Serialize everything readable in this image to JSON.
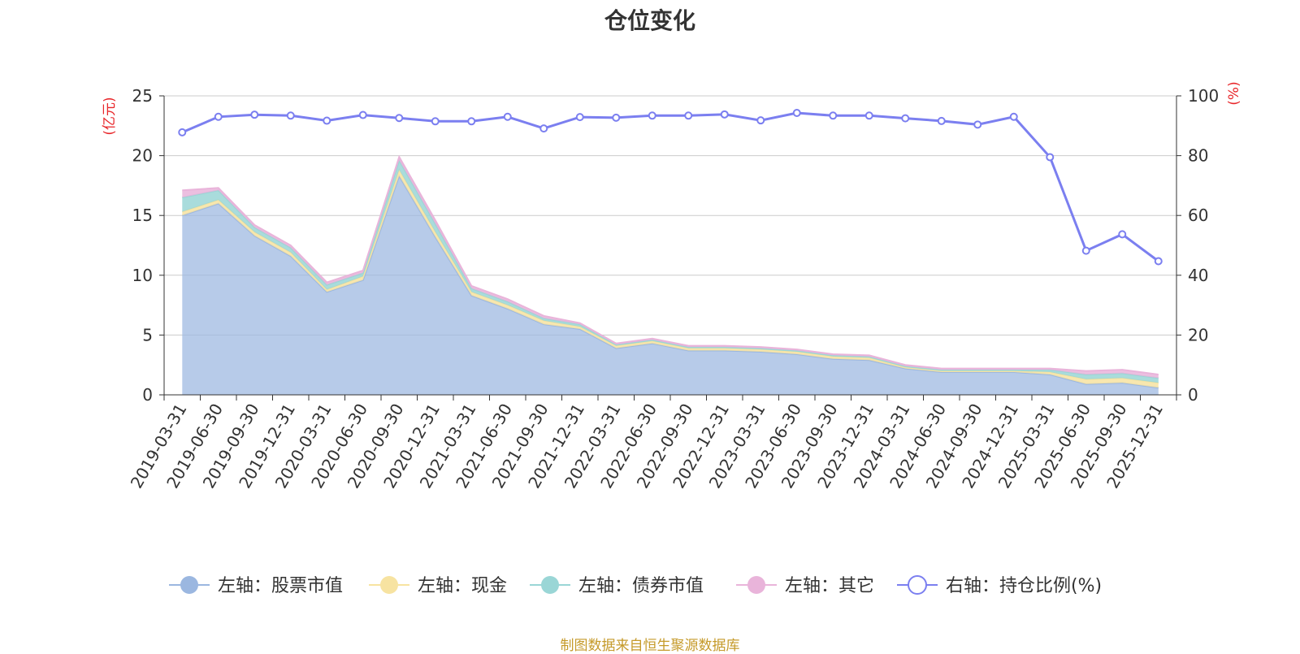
{
  "chart_data": {
    "type": "area",
    "title": "仓位变化",
    "left_axis_unit": "(亿元)",
    "right_axis_unit": "(%)",
    "x": [
      "2019-03-31",
      "2019-06-30",
      "2019-09-30",
      "2019-12-31",
      "2020-03-31",
      "2020-06-30",
      "2020-09-30",
      "2020-12-31",
      "2021-03-31",
      "2021-06-30",
      "2021-09-30",
      "2021-12-31",
      "2022-03-31",
      "2022-06-30",
      "2022-09-30",
      "2022-12-31",
      "2023-03-31",
      "2023-06-30",
      "2023-09-30",
      "2023-12-31",
      "2024-03-31",
      "2024-06-30",
      "2024-09-30",
      "2024-12-31",
      "2025-03-31",
      "2025-06-30",
      "2025-09-30",
      "2025-12-31"
    ],
    "ylim_left": [
      0,
      25
    ],
    "yticks_left": [
      0,
      5,
      10,
      15,
      20,
      25
    ],
    "ylim_right": [
      0,
      100
    ],
    "yticks_right": [
      0,
      20,
      40,
      60,
      80,
      100
    ],
    "grid": true,
    "legend_position": "bottom",
    "series": [
      {
        "name": "左轴：股票市值",
        "axis": "left",
        "kind": "stacked-area",
        "color": "#9bb7e0",
        "values": [
          15.0,
          16.0,
          13.3,
          11.6,
          8.6,
          9.6,
          18.3,
          13.2,
          8.3,
          7.2,
          5.9,
          5.5,
          3.9,
          4.3,
          3.7,
          3.7,
          3.6,
          3.4,
          3.0,
          2.9,
          2.2,
          1.9,
          1.9,
          1.9,
          1.7,
          0.9,
          1.0,
          0.6
        ]
      },
      {
        "name": "左轴：现金",
        "axis": "left",
        "kind": "stacked-area",
        "color": "#f7e3a1",
        "values": [
          0.3,
          0.3,
          0.3,
          0.3,
          0.2,
          0.3,
          0.5,
          0.4,
          0.3,
          0.3,
          0.3,
          0.2,
          0.2,
          0.2,
          0.2,
          0.2,
          0.2,
          0.2,
          0.2,
          0.2,
          0.1,
          0.1,
          0.1,
          0.1,
          0.2,
          0.4,
          0.4,
          0.4
        ]
      },
      {
        "name": "左轴：债券市值",
        "axis": "left",
        "kind": "stacked-area",
        "color": "#9ad6d6",
        "values": [
          1.2,
          0.8,
          0.4,
          0.4,
          0.4,
          0.3,
          0.8,
          0.7,
          0.3,
          0.3,
          0.2,
          0.2,
          0.1,
          0.1,
          0.1,
          0.1,
          0.1,
          0.1,
          0.1,
          0.1,
          0.1,
          0.1,
          0.1,
          0.1,
          0.2,
          0.4,
          0.4,
          0.4
        ]
      },
      {
        "name": "左轴：其它",
        "axis": "left",
        "kind": "stacked-area",
        "color": "#e9b4da",
        "values": [
          0.6,
          0.2,
          0.2,
          0.2,
          0.2,
          0.2,
          0.3,
          0.3,
          0.2,
          0.2,
          0.2,
          0.1,
          0.1,
          0.1,
          0.1,
          0.1,
          0.1,
          0.1,
          0.1,
          0.1,
          0.1,
          0.1,
          0.1,
          0.1,
          0.1,
          0.3,
          0.3,
          0.3
        ]
      },
      {
        "name": "右轴：持仓比例(%)",
        "axis": "right",
        "kind": "line",
        "color": "#7b7ff0",
        "values": [
          87.8,
          93.0,
          93.7,
          93.4,
          91.7,
          93.6,
          92.6,
          91.5,
          91.5,
          93.0,
          89.1,
          92.9,
          92.7,
          93.4,
          93.4,
          93.8,
          91.8,
          94.3,
          93.4,
          93.4,
          92.5,
          91.6,
          90.4,
          93.0,
          79.5,
          48.2,
          53.7,
          44.7
        ]
      }
    ]
  },
  "footer": {
    "source": "制图数据来自恒生聚源数据库"
  }
}
